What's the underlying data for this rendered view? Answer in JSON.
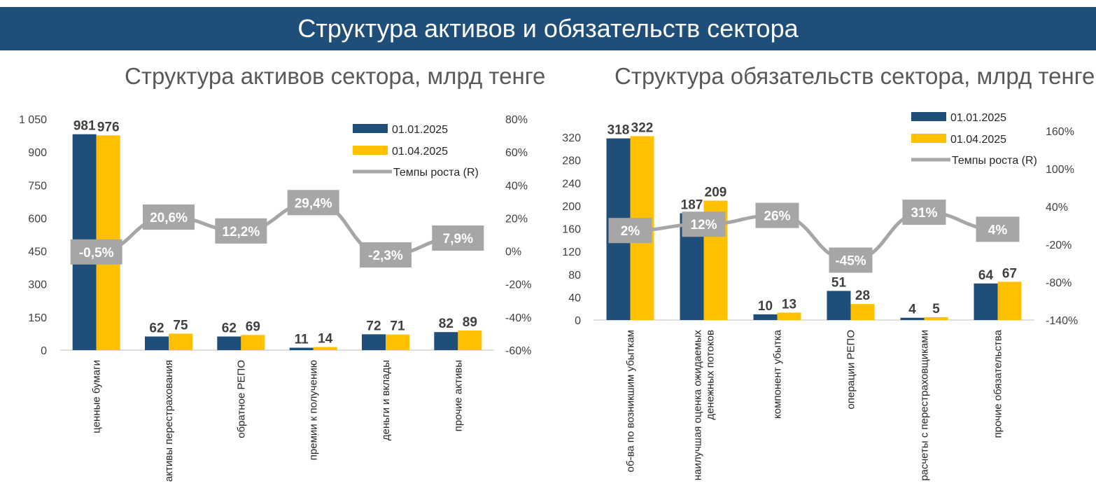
{
  "header": {
    "title": "Структура активов и обязательств сектора"
  },
  "colors": {
    "banner": "#1f4e79",
    "series1": "#1f4e79",
    "series2": "#ffc000",
    "rate": "#a6a6a6"
  },
  "chart_data": [
    {
      "type": "bar",
      "title": "Структура активов сектора, млрд тенге",
      "categories": [
        [
          "ценные бумаги"
        ],
        [
          "активы перестрахования"
        ],
        [
          "обратное РЕПО"
        ],
        [
          "премии к получению"
        ],
        [
          "деньги и вклады"
        ],
        [
          "прочие активы"
        ]
      ],
      "series": [
        {
          "name": "01.01.2025",
          "values": [
            981,
            62,
            62,
            11,
            72,
            82
          ],
          "labels": [
            "981",
            "62",
            "62",
            "11",
            "72",
            "82"
          ]
        },
        {
          "name": "01.04.2025",
          "values": [
            976,
            75,
            69,
            14,
            71,
            89
          ],
          "labels": [
            "976",
            "75",
            "69",
            "14",
            "71",
            "89"
          ]
        }
      ],
      "rate": {
        "name": "Темпы роста (R)",
        "values": [
          -0.5,
          20.6,
          12.2,
          29.4,
          -2.3,
          7.9
        ],
        "labels": [
          "-0,5%",
          "20,6%",
          "12,2%",
          "29,4%",
          "-2,3%",
          "7,9%"
        ]
      },
      "y_left": {
        "min": 0,
        "max": 1050,
        "ticks": [
          "0",
          "150",
          "300",
          "450",
          "600",
          "750",
          "900",
          "1 050"
        ]
      },
      "y_right": {
        "min": -60,
        "max": 80,
        "ticks": [
          "-60%",
          "-40%",
          "-20%",
          "0%",
          "20%",
          "40%",
          "60%",
          "80%"
        ]
      },
      "legend": "top-right"
    },
    {
      "type": "bar",
      "title": "Структура обязательств сектора, млрд тенге",
      "categories": [
        [
          "об-ва по возникшим убыткам"
        ],
        [
          "наилучшая оценка ожидаемых",
          "денежных потоков"
        ],
        [
          "компонент убытка"
        ],
        [
          "операции РЕПО"
        ],
        [
          "расчеты с перестраховщиками"
        ],
        [
          "прочие обязательства"
        ]
      ],
      "series": [
        {
          "name": "01.01.2025",
          "values": [
            318,
            187,
            10,
            51,
            4,
            64
          ],
          "labels": [
            "318",
            "187",
            "10",
            "51",
            "4",
            "64"
          ]
        },
        {
          "name": "01.04.2025",
          "values": [
            322,
            209,
            13,
            28,
            5,
            67
          ],
          "labels": [
            "322",
            "209",
            "13",
            "28",
            "5",
            "67"
          ]
        }
      ],
      "rate": {
        "name": "Темпы роста (R)",
        "values": [
          2,
          12,
          26,
          -45,
          31,
          4
        ],
        "labels": [
          "2%",
          "12%",
          "26%",
          "-45%",
          "31%",
          "4%"
        ]
      },
      "y_left": {
        "min": 0,
        "max": 320,
        "ticks": [
          "0",
          "40",
          "80",
          "120",
          "160",
          "200",
          "240",
          "280",
          "320"
        ]
      },
      "y_right": {
        "min": -140,
        "max": 160,
        "ticks": [
          "-140%",
          "-80%",
          "-20%",
          "40%",
          "100%",
          "160%"
        ]
      },
      "legend": "top-right"
    }
  ]
}
